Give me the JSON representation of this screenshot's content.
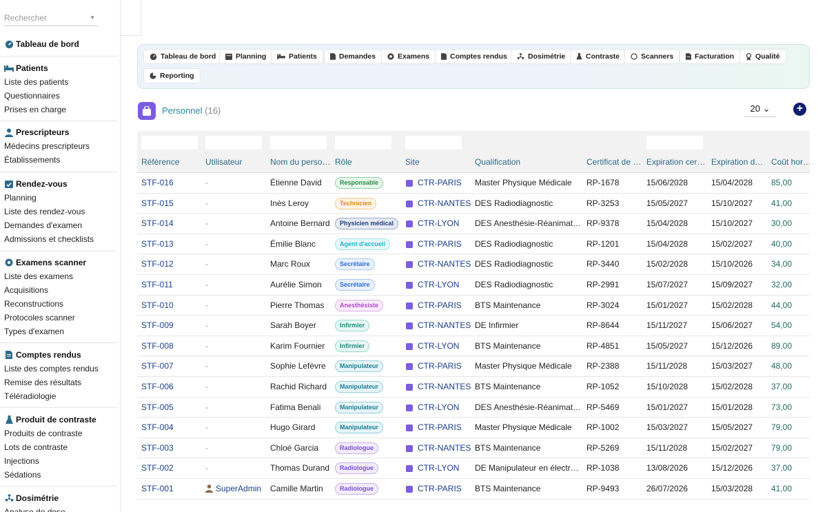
{
  "search": {
    "placeholder": "Rechercher"
  },
  "sidebar": {
    "dashboard": "Tableau de bord",
    "sections": [
      {
        "title": "Patients",
        "icon": "bed-icon",
        "items": [
          "Liste des patients",
          "Questionnaires",
          "Prises en charge"
        ]
      },
      {
        "title": "Prescripteurs",
        "icon": "doctor-icon",
        "items": [
          "Médecins prescripteurs",
          "Établissements"
        ]
      },
      {
        "title": "Rendez-vous",
        "icon": "calendar-check-icon",
        "items": [
          "Planning",
          "Liste des rendez-vous",
          "Demandes d'examen",
          "Admissions et checklists"
        ]
      },
      {
        "title": "Examens scanner",
        "icon": "scanner-icon",
        "items": [
          "Liste des examens",
          "Acquisitions",
          "Reconstructions",
          "Protocoles scanner",
          "Types d'examen"
        ]
      },
      {
        "title": "Comptes rendus",
        "icon": "document-icon",
        "items": [
          "Liste des comptes rendus",
          "Remise des résultats",
          "Téléradiologie"
        ]
      },
      {
        "title": "Produit de contraste",
        "icon": "flask-icon",
        "items": [
          "Produits de contraste",
          "Lots de contraste",
          "Injections",
          "Sédations"
        ]
      },
      {
        "title": "Dosimétrie",
        "icon": "radiation-icon",
        "items": [
          "Analyse de dose"
        ]
      }
    ]
  },
  "nav": {
    "buttons": [
      "Tableau de bord",
      "Planning",
      "Patients",
      "Demandes",
      "Examens",
      "Comptes rendus",
      "Dosimétrie",
      "Contraste",
      "Scanners",
      "Facturation",
      "Qualité",
      "Reporting"
    ]
  },
  "page": {
    "title": "Personnel",
    "count": "(16)",
    "page_size": "20 ⌄",
    "add": "+"
  },
  "table": {
    "headers": [
      "Référence",
      "Utilisateur",
      "Nom du perso…",
      "Rôle",
      "Site",
      "Qualification",
      "Certificat de …",
      "Expiration cert…",
      "Expiration d…",
      "Coût horaire"
    ],
    "rows": [
      {
        "ref": "STF-016",
        "user": "-",
        "name": "Étienne David",
        "role": "Responsable",
        "site": "CTR-PARIS",
        "qual": "Master Physique Médicale",
        "cert": "RP-1678",
        "exp1": "15/06/2028",
        "exp2": "15/04/2028",
        "cost": "85,00"
      },
      {
        "ref": "STF-015",
        "user": "-",
        "name": "Inès Leroy",
        "role": "Technicien",
        "site": "CTR-NANTES",
        "qual": "DES Radiodiagnostic",
        "cert": "RP-3253",
        "exp1": "15/05/2027",
        "exp2": "15/10/2027",
        "cost": "41,00"
      },
      {
        "ref": "STF-014",
        "user": "-",
        "name": "Antoine Bernard",
        "role": "Physicien médical",
        "site": "CTR-LYON",
        "qual": "DES Anesthésie-Réanimation",
        "cert": "RP-9378",
        "exp1": "15/04/2028",
        "exp2": "15/10/2027",
        "cost": "30,00"
      },
      {
        "ref": "STF-013",
        "user": "-",
        "name": "Émilie Blanc",
        "role": "Agent d'accueil",
        "site": "CTR-PARIS",
        "qual": "DES Radiodiagnostic",
        "cert": "RP-1201",
        "exp1": "15/04/2028",
        "exp2": "15/02/2027",
        "cost": "40,00"
      },
      {
        "ref": "STF-012",
        "user": "-",
        "name": "Marc Roux",
        "role": "Secrétaire",
        "site": "CTR-NANTES",
        "qual": "DES Radiodiagnostic",
        "cert": "RP-3440",
        "exp1": "15/02/2028",
        "exp2": "15/10/2026",
        "cost": "34,00"
      },
      {
        "ref": "STF-011",
        "user": "-",
        "name": "Aurélie Simon",
        "role": "Secrétaire",
        "site": "CTR-LYON",
        "qual": "DES Radiodiagnostic",
        "cert": "RP-2991",
        "exp1": "15/07/2027",
        "exp2": "15/09/2027",
        "cost": "32,00"
      },
      {
        "ref": "STF-010",
        "user": "-",
        "name": "Pierre Thomas",
        "role": "Anesthésiste",
        "site": "CTR-PARIS",
        "qual": "BTS Maintenance",
        "cert": "RP-3024",
        "exp1": "15/01/2027",
        "exp2": "15/02/2028",
        "cost": "44,00"
      },
      {
        "ref": "STF-009",
        "user": "-",
        "name": "Sarah Boyer",
        "role": "Infirmier",
        "site": "CTR-NANTES",
        "qual": "DE Infirmier",
        "cert": "RP-8644",
        "exp1": "15/11/2027",
        "exp2": "15/06/2027",
        "cost": "54,00"
      },
      {
        "ref": "STF-008",
        "user": "-",
        "name": "Karim Fournier",
        "role": "Infirmier",
        "site": "CTR-LYON",
        "qual": "BTS Maintenance",
        "cert": "RP-4851",
        "exp1": "15/05/2027",
        "exp2": "15/12/2026",
        "cost": "89,00"
      },
      {
        "ref": "STF-007",
        "user": "-",
        "name": "Sophie Lefèvre",
        "role": "Manipulateur",
        "site": "CTR-PARIS",
        "qual": "Master Physique Médicale",
        "cert": "RP-2388",
        "exp1": "15/11/2028",
        "exp2": "15/03/2027",
        "cost": "48,00"
      },
      {
        "ref": "STF-006",
        "user": "-",
        "name": "Rachid Richard",
        "role": "Manipulateur",
        "site": "CTR-NANTES",
        "qual": "BTS Maintenance",
        "cert": "RP-1052",
        "exp1": "15/10/2028",
        "exp2": "15/02/2028",
        "cost": "37,00"
      },
      {
        "ref": "STF-005",
        "user": "-",
        "name": "Fatima Benali",
        "role": "Manipulateur",
        "site": "CTR-LYON",
        "qual": "DES Anesthésie-Réanimation",
        "cert": "RP-5469",
        "exp1": "15/01/2027",
        "exp2": "15/01/2028",
        "cost": "73,00"
      },
      {
        "ref": "STF-004",
        "user": "-",
        "name": "Hugo Girard",
        "role": "Manipulateur",
        "site": "CTR-PARIS",
        "qual": "Master Physique Médicale",
        "cert": "RP-1002",
        "exp1": "15/03/2027",
        "exp2": "15/05/2027",
        "cost": "79,00"
      },
      {
        "ref": "STF-003",
        "user": "-",
        "name": "Chloé Garcia",
        "role": "Radiologue",
        "site": "CTR-NANTES",
        "qual": "BTS Maintenance",
        "cert": "RP-5269",
        "exp1": "15/11/2028",
        "exp2": "15/02/2027",
        "cost": "79,00"
      },
      {
        "ref": "STF-002",
        "user": "-",
        "name": "Thomas Durand",
        "role": "Radiologue",
        "site": "CTR-LYON",
        "qual": "DE Manipulateur en électror…",
        "cert": "RP-1038",
        "exp1": "13/08/2026",
        "exp2": "15/12/2026",
        "cost": "37,00"
      },
      {
        "ref": "STF-001",
        "user": "SuperAdmin",
        "name": "Camille Martin",
        "role": "Radiologue",
        "site": "CTR-PARIS",
        "qual": "BTS Maintenance",
        "cert": "RP-9493",
        "exp1": "26/07/2026",
        "exp2": "15/03/2028",
        "cost": "41,00"
      }
    ]
  },
  "role_colors": {
    "Responsable": {
      "bg": "#e8f7ec",
      "border": "#8fd3a3",
      "text": "#2a8a45"
    },
    "Technicien": {
      "bg": "#fff4e5",
      "border": "#f3c989",
      "text": "#d98a17"
    },
    "Physicien médical": {
      "bg": "#e6ebf5",
      "border": "#9aa9c7",
      "text": "#1f3d7a"
    },
    "Agent d'accueil": {
      "bg": "#e8f9fb",
      "border": "#9fe0ea",
      "text": "#22b3c8"
    },
    "Secrétaire": {
      "bg": "#e9f1fd",
      "border": "#a9c6f2",
      "text": "#2f6fd6"
    },
    "Anesthésiste": {
      "bg": "#f8ecfb",
      "border": "#ddb0ea",
      "text": "#b14ecf"
    },
    "Infirmier": {
      "bg": "#e7f6f4",
      "border": "#9ad6cc",
      "text": "#1e8f80"
    },
    "Manipulateur": {
      "bg": "#e6f4f7",
      "border": "#95cfdc",
      "text": "#1e7f96"
    },
    "Radiologue": {
      "bg": "#f2ecfc",
      "border": "#c7b0ee",
      "text": "#7b4fd6"
    }
  }
}
